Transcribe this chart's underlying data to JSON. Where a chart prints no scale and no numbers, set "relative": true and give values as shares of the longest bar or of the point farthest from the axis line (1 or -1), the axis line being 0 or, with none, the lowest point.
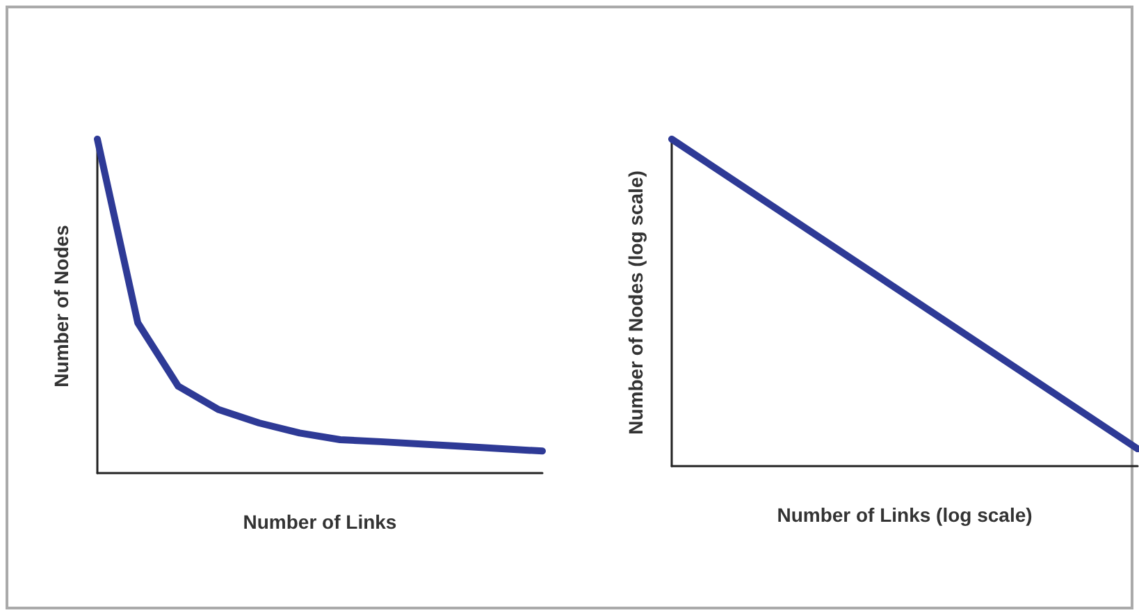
{
  "chart_data": [
    {
      "type": "line",
      "relative": true,
      "xlabel": "Number of Links",
      "ylabel": "Number of Nodes",
      "categories": [
        null,
        null,
        null,
        null,
        null,
        null,
        null,
        null,
        null,
        null,
        null,
        null
      ],
      "series": [
        {
          "color": "#2e3a96",
          "values": [
            1,
            0.45,
            0.26,
            0.19,
            0.15,
            0.12,
            0.1,
            0.094,
            0.087,
            0.08,
            0.073,
            0.066
          ]
        }
      ],
      "marker": "none",
      "grid": false
    },
    {
      "type": "line",
      "relative": true,
      "xlabel": "Number of Links (log scale)",
      "ylabel": "Number of Nodes (log scale)",
      "categories": [
        null,
        null
      ],
      "series": [
        {
          "color": "#2e3a96",
          "values": [
            1,
            0.053
          ]
        }
      ],
      "marker": "none",
      "grid": false
    }
  ]
}
